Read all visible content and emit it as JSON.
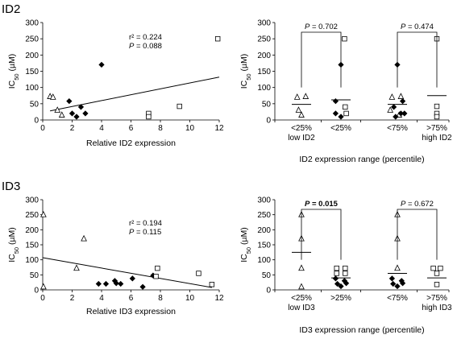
{
  "sections": [
    "ID2",
    "ID3"
  ],
  "chart_data": [
    {
      "type": "scatter",
      "panel": "ID2-regression",
      "xlabel": "Relative ID2 expression",
      "ylabel_main": "IC",
      "ylabel_sub": "50",
      "ylabel_unit": " (µM)",
      "xlim": [
        0,
        12
      ],
      "xticks": [
        0,
        2,
        4,
        6,
        8,
        10,
        12
      ],
      "ylim": [
        0,
        300
      ],
      "yticks": [
        0,
        50,
        100,
        150,
        200,
        250,
        300
      ],
      "r2_label": "r² = 0.224",
      "p_prefix": "P",
      "p_value": " = 0.088",
      "trendline": [
        [
          0.5,
          28
        ],
        [
          12,
          132
        ]
      ],
      "series": [
        {
          "marker": "triangle",
          "points": [
            [
              0.5,
              72
            ],
            [
              0.7,
              70
            ],
            [
              1.0,
              30
            ],
            [
              1.3,
              15
            ]
          ]
        },
        {
          "marker": "diamond",
          "points": [
            [
              1.8,
              58
            ],
            [
              2.0,
              20
            ],
            [
              2.3,
              10
            ],
            [
              2.6,
              40
            ],
            [
              2.9,
              20
            ],
            [
              4.0,
              170
            ]
          ]
        },
        {
          "marker": "square",
          "points": [
            [
              7.2,
              20
            ],
            [
              7.2,
              10
            ],
            [
              9.3,
              42
            ],
            [
              11.9,
              250
            ]
          ]
        }
      ]
    },
    {
      "type": "scatter",
      "panel": "ID2-groups",
      "xlabel": "ID2 expression range (percentile)",
      "ylabel_main": "IC",
      "ylabel_sub": "50",
      "ylabel_unit": " (µM)",
      "ylim": [
        0,
        300
      ],
      "yticks": [
        0,
        50,
        100,
        150,
        200,
        250,
        300
      ],
      "categories": [
        {
          "line1": "<25%",
          "line2": "low ID2"
        },
        {
          "line1": "<25%",
          "line2": ""
        },
        {
          "line1": "<75%",
          "line2": ""
        },
        {
          "line1": ">75%",
          "line2": "high ID2"
        }
      ],
      "group_means": [
        48,
        62,
        48,
        75
      ],
      "comparisons": [
        {
          "from": 0,
          "to": 1,
          "p_prefix": "P",
          "p_value": " = 0.702",
          "bold": false
        },
        {
          "from": 2,
          "to": 3,
          "p_prefix": "P",
          "p_value": " = 0.474",
          "bold": false
        }
      ],
      "points": [
        {
          "cat": 0,
          "dx": -0.12,
          "y": 70,
          "marker": "triangle"
        },
        {
          "cat": 0,
          "dx": 0.12,
          "y": 72,
          "marker": "triangle"
        },
        {
          "cat": 0,
          "dx": -0.08,
          "y": 30,
          "marker": "triangle"
        },
        {
          "cat": 0,
          "dx": 0.0,
          "y": 15,
          "marker": "triangle"
        },
        {
          "cat": 1,
          "dx": 0.0,
          "y": 170,
          "marker": "diamond"
        },
        {
          "cat": 1,
          "dx": -0.15,
          "y": 58,
          "marker": "diamond"
        },
        {
          "cat": 1,
          "dx": 0.12,
          "y": 40,
          "marker": "square"
        },
        {
          "cat": 1,
          "dx": -0.15,
          "y": 20,
          "marker": "diamond"
        },
        {
          "cat": 1,
          "dx": 0.0,
          "y": 10,
          "marker": "diamond"
        },
        {
          "cat": 1,
          "dx": 0.15,
          "y": 20,
          "marker": "square"
        },
        {
          "cat": 1,
          "dx": 0.1,
          "y": 250,
          "marker": "square"
        },
        {
          "cat": 2,
          "dx": -0.15,
          "y": 70,
          "marker": "triangle"
        },
        {
          "cat": 2,
          "dx": 0.1,
          "y": 72,
          "marker": "triangle"
        },
        {
          "cat": 2,
          "dx": -0.2,
          "y": 30,
          "marker": "triangle"
        },
        {
          "cat": 2,
          "dx": 0.05,
          "y": 15,
          "marker": "triangle"
        },
        {
          "cat": 2,
          "dx": 0.0,
          "y": 170,
          "marker": "diamond"
        },
        {
          "cat": 2,
          "dx": 0.15,
          "y": 58,
          "marker": "diamond"
        },
        {
          "cat": 2,
          "dx": -0.1,
          "y": 40,
          "marker": "diamond"
        },
        {
          "cat": 2,
          "dx": 0.2,
          "y": 20,
          "marker": "diamond"
        },
        {
          "cat": 2,
          "dx": -0.05,
          "y": 10,
          "marker": "diamond"
        },
        {
          "cat": 2,
          "dx": 0.1,
          "y": 20,
          "marker": "diamond"
        },
        {
          "cat": 3,
          "dx": 0.0,
          "y": 250,
          "marker": "square"
        },
        {
          "cat": 3,
          "dx": 0.0,
          "y": 42,
          "marker": "square"
        },
        {
          "cat": 3,
          "dx": 0.0,
          "y": 20,
          "marker": "square"
        },
        {
          "cat": 3,
          "dx": 0.0,
          "y": 10,
          "marker": "square"
        }
      ]
    },
    {
      "type": "scatter",
      "panel": "ID3-regression",
      "xlabel": "Relative ID3 expression",
      "ylabel_main": "IC",
      "ylabel_sub": "50",
      "ylabel_unit": " (µM)",
      "xlim": [
        0,
        12
      ],
      "xticks": [
        0,
        2,
        4,
        6,
        8,
        10,
        12
      ],
      "ylim": [
        0,
        300
      ],
      "yticks": [
        0,
        50,
        100,
        150,
        200,
        250,
        300
      ],
      "r2_label": "r² = 0.194",
      "p_prefix": "P",
      "p_value": " = 0.115",
      "trendline": [
        [
          0,
          107
        ],
        [
          11.5,
          8
        ]
      ],
      "series": [
        {
          "marker": "triangle",
          "points": [
            [
              0.05,
              250
            ],
            [
              0.05,
              10
            ],
            [
              2.3,
              72
            ],
            [
              2.8,
              170
            ]
          ]
        },
        {
          "marker": "diamond",
          "points": [
            [
              3.8,
              20
            ],
            [
              4.3,
              20
            ],
            [
              4.9,
              30
            ],
            [
              5.0,
              22
            ],
            [
              5.3,
              20
            ],
            [
              6.1,
              38
            ],
            [
              6.8,
              10
            ],
            [
              7.5,
              48
            ]
          ]
        },
        {
          "marker": "square",
          "points": [
            [
              7.7,
              45
            ],
            [
              7.8,
              72
            ],
            [
              10.6,
              55
            ],
            [
              11.5,
              18
            ]
          ]
        }
      ]
    },
    {
      "type": "scatter",
      "panel": "ID3-groups",
      "xlabel": "ID3 expression range (percentile)",
      "ylabel_main": "IC",
      "ylabel_sub": "50",
      "ylabel_unit": " (µM)",
      "ylim": [
        0,
        300
      ],
      "yticks": [
        0,
        50,
        100,
        150,
        200,
        250,
        300
      ],
      "categories": [
        {
          "line1": "<25%",
          "line2": "low ID3"
        },
        {
          "line1": ">25%",
          "line2": ""
        },
        {
          "line1": "<75%",
          "line2": ""
        },
        {
          "line1": ">75%",
          "line2": "high ID3"
        }
      ],
      "group_means": [
        125,
        40,
        55,
        40
      ],
      "comparisons": [
        {
          "from": 0,
          "to": 1,
          "p_prefix": "P",
          "p_value": " = 0.015",
          "bold": true
        },
        {
          "from": 2,
          "to": 3,
          "p_prefix": "P",
          "p_value": " = 0.672",
          "bold": false
        }
      ],
      "points": [
        {
          "cat": 0,
          "dx": 0.0,
          "y": 250,
          "marker": "triangle"
        },
        {
          "cat": 0,
          "dx": 0.0,
          "y": 170,
          "marker": "triangle"
        },
        {
          "cat": 0,
          "dx": 0.0,
          "y": 72,
          "marker": "triangle"
        },
        {
          "cat": 0,
          "dx": 0.0,
          "y": 10,
          "marker": "triangle"
        },
        {
          "cat": 1,
          "dx": -0.12,
          "y": 72,
          "marker": "square"
        },
        {
          "cat": 1,
          "dx": 0.12,
          "y": 72,
          "marker": "square"
        },
        {
          "cat": 1,
          "dx": -0.12,
          "y": 55,
          "marker": "square"
        },
        {
          "cat": 1,
          "dx": 0.12,
          "y": 55,
          "marker": "square"
        },
        {
          "cat": 1,
          "dx": -0.15,
          "y": 38,
          "marker": "diamond"
        },
        {
          "cat": 1,
          "dx": 0.1,
          "y": 30,
          "marker": "diamond"
        },
        {
          "cat": 1,
          "dx": -0.1,
          "y": 20,
          "marker": "diamond"
        },
        {
          "cat": 1,
          "dx": 0.15,
          "y": 22,
          "marker": "diamond"
        },
        {
          "cat": 1,
          "dx": 0.0,
          "y": 12,
          "marker": "diamond"
        },
        {
          "cat": 2,
          "dx": 0.0,
          "y": 250,
          "marker": "triangle"
        },
        {
          "cat": 2,
          "dx": 0.0,
          "y": 170,
          "marker": "triangle"
        },
        {
          "cat": 2,
          "dx": 0.0,
          "y": 72,
          "marker": "triangle"
        },
        {
          "cat": 2,
          "dx": -0.15,
          "y": 38,
          "marker": "diamond"
        },
        {
          "cat": 2,
          "dx": 0.12,
          "y": 30,
          "marker": "diamond"
        },
        {
          "cat": 2,
          "dx": -0.12,
          "y": 20,
          "marker": "diamond"
        },
        {
          "cat": 2,
          "dx": 0.15,
          "y": 22,
          "marker": "diamond"
        },
        {
          "cat": 2,
          "dx": 0.0,
          "y": 12,
          "marker": "diamond"
        },
        {
          "cat": 3,
          "dx": -0.1,
          "y": 72,
          "marker": "square"
        },
        {
          "cat": 3,
          "dx": 0.1,
          "y": 72,
          "marker": "square"
        },
        {
          "cat": 3,
          "dx": 0.0,
          "y": 55,
          "marker": "square"
        },
        {
          "cat": 3,
          "dx": 0.0,
          "y": 18,
          "marker": "square"
        }
      ]
    }
  ]
}
